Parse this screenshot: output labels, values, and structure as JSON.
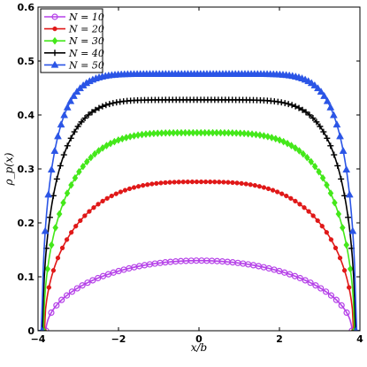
{
  "chart_data": {
    "type": "line",
    "xlabel": "x/b",
    "ylabel": "ρ_p(x)",
    "xlim": [
      -4,
      4
    ],
    "ylim": [
      0,
      0.6
    ],
    "xticks": [
      "−4",
      "−2",
      "0",
      "2",
      "4"
    ],
    "yticks": [
      "0",
      "0.1",
      "0.2",
      "0.3",
      "0.4",
      "0.5",
      "0.6"
    ],
    "xtick_values": [
      -4,
      -2,
      0,
      2,
      4
    ],
    "ytick_values": [
      0,
      0.1,
      0.2,
      0.3,
      0.4,
      0.5,
      0.6
    ],
    "grid": false,
    "legend_position": "top-left",
    "series": [
      {
        "name": "N = 10",
        "color": "#b541e8",
        "marker": "circle-open",
        "peak": 0.13,
        "x_edge": 3.8,
        "shape_power": 2
      },
      {
        "name": "N = 20",
        "color": "#e01818",
        "marker": "dot",
        "peak": 0.276,
        "x_edge": 3.84,
        "shape_power": 3
      },
      {
        "name": "N = 30",
        "color": "#44e81a",
        "marker": "diamond",
        "peak": 0.367,
        "x_edge": 3.86,
        "shape_power": 4
      },
      {
        "name": "N = 40",
        "color": "#000000",
        "marker": "plus",
        "peak": 0.428,
        "x_edge": 3.88,
        "shape_power": 6
      },
      {
        "name": "N = 50",
        "color": "#2b55e6",
        "marker": "triangle",
        "peak": 0.476,
        "x_edge": 3.9,
        "shape_power": 8
      }
    ]
  }
}
